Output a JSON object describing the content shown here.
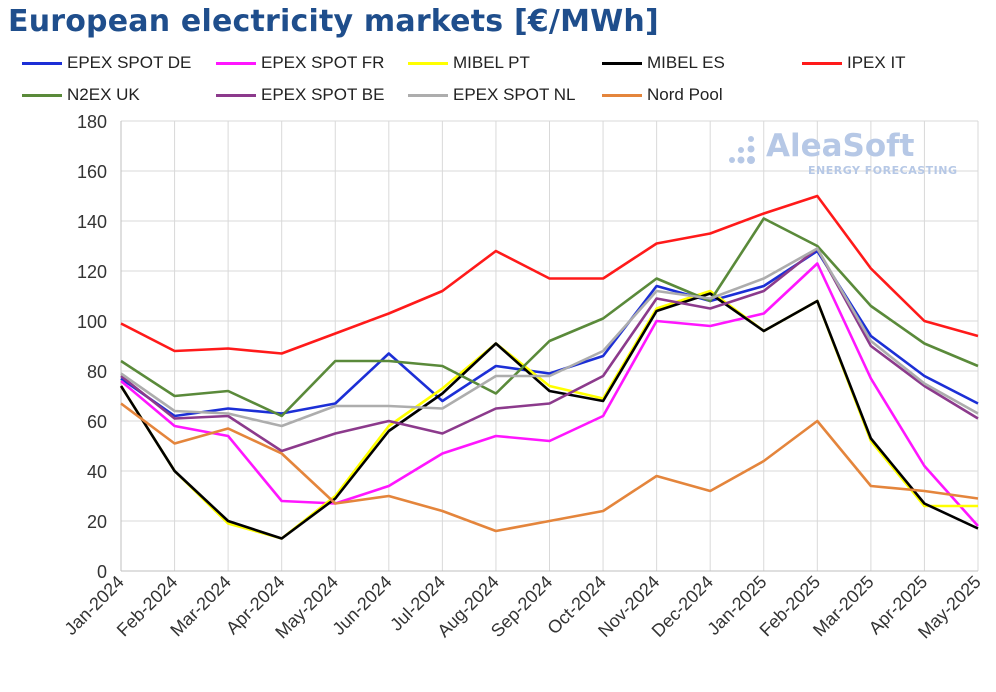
{
  "chart_data": {
    "type": "line",
    "title": "European electricity markets [€/MWh]",
    "categories": [
      "Jan-2024",
      "Feb-2024",
      "Mar-2024",
      "Apr-2024",
      "May-2024",
      "Jun-2024",
      "Jul-2024",
      "Aug-2024",
      "Sep-2024",
      "Oct-2024",
      "Nov-2024",
      "Dec-2024",
      "Jan-2025",
      "Feb-2025",
      "Mar-2025",
      "Apr-2025",
      "May-2025"
    ],
    "ylim": [
      0,
      180
    ],
    "yticks": [
      0,
      20,
      40,
      60,
      80,
      100,
      120,
      140,
      160,
      180
    ],
    "grid": "vertical and horizontal gridlines",
    "legend_position": "top",
    "series": [
      {
        "name": "EPEX SPOT DE",
        "color": "#1c2fd6",
        "values": [
          77,
          62,
          65,
          63,
          67,
          87,
          68,
          82,
          79,
          86,
          114,
          108,
          114,
          128,
          94,
          78,
          67
        ]
      },
      {
        "name": "EPEX SPOT FR",
        "color": "#ff16ff",
        "values": [
          76,
          58,
          54,
          28,
          27,
          34,
          47,
          54,
          52,
          62,
          100,
          98,
          103,
          123,
          77,
          42,
          18
        ]
      },
      {
        "name": "MIBEL PT",
        "color": "#ffff00",
        "values": [
          74,
          40,
          19,
          13,
          30,
          58,
          73,
          91,
          74,
          69,
          105,
          112,
          96,
          108,
          52,
          26,
          26
        ]
      },
      {
        "name": "MIBEL ES",
        "color": "#000000",
        "values": [
          74,
          40,
          20,
          13,
          29,
          56,
          71,
          91,
          72,
          68,
          104,
          111,
          96,
          108,
          53,
          27,
          17
        ]
      },
      {
        "name": "IPEX IT",
        "color": "#ff1a1a",
        "values": [
          99,
          88,
          89,
          87,
          95,
          103,
          112,
          128,
          117,
          117,
          131,
          135,
          143,
          150,
          121,
          100,
          94
        ]
      },
      {
        "name": "N2EX UK",
        "color": "#5a8a3a",
        "values": [
          84,
          70,
          72,
          62,
          84,
          84,
          82,
          71,
          92,
          101,
          117,
          108,
          141,
          130,
          106,
          91,
          82
        ]
      },
      {
        "name": "EPEX SPOT BE",
        "color": "#8c3a8c",
        "values": [
          78,
          61,
          62,
          48,
          55,
          60,
          55,
          65,
          67,
          78,
          109,
          105,
          112,
          129,
          90,
          74,
          61
        ]
      },
      {
        "name": "EPEX SPOT NL",
        "color": "#adadad",
        "values": [
          79,
          64,
          63,
          58,
          66,
          66,
          65,
          78,
          78,
          88,
          112,
          109,
          117,
          129,
          92,
          75,
          63
        ]
      },
      {
        "name": "Nord Pool",
        "color": "#e4853c",
        "values": [
          67,
          51,
          57,
          47,
          27,
          30,
          24,
          16,
          20,
          24,
          38,
          32,
          44,
          60,
          34,
          32,
          29
        ]
      }
    ]
  },
  "watermark": {
    "name": "AleaSoft",
    "subtitle": "ENERGY FORECASTING",
    "color": "#b6c8e6"
  }
}
